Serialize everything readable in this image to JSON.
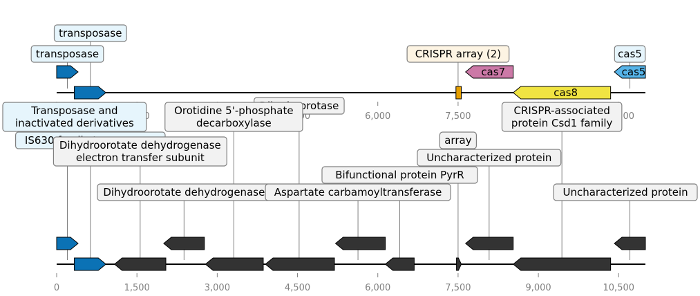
{
  "colors": {
    "transposase_blue": "#0b72b5",
    "crispr_array_orange": "#e69f00",
    "cas7_pink": "#cc79a7",
    "cas8_yellow": "#f0e442",
    "cas5_lightblue": "#56b4e9",
    "dark_gene": "#333333",
    "label_box_blue": "#e6f5fc",
    "label_box_cream": "#fdf4e3",
    "label_box_pink": "#fae9f2",
    "label_box_gray": "#f2f2f2",
    "tick_gray": "#808080"
  },
  "axis": {
    "min": 0,
    "max": 11000,
    "ticks": [
      {
        "value": 0,
        "label": "0"
      },
      {
        "value": 1500,
        "label": "1,500"
      },
      {
        "value": 3000,
        "label": "3,000"
      },
      {
        "value": 4500,
        "label": "4,500"
      },
      {
        "value": 6000,
        "label": "6,000"
      },
      {
        "value": 7500,
        "label": "7,500"
      },
      {
        "value": 9000,
        "label": "9,000"
      },
      {
        "value": 10500,
        "label": "10,500"
      }
    ]
  },
  "tracks": [
    {
      "id": "top",
      "genes": [
        {
          "start": 0,
          "end": 400,
          "strand": 1,
          "row": 1,
          "color": "transposase_blue"
        },
        {
          "start": 330,
          "end": 920,
          "strand": 1,
          "row": 0,
          "color": "transposase_blue"
        },
        {
          "start": 7460,
          "end": 7560,
          "strand": 0,
          "row": 0,
          "color": "crispr_array_orange"
        },
        {
          "start": 7640,
          "end": 8530,
          "strand": -1,
          "row": 1,
          "color": "cas7_pink",
          "inner_label": "cas7"
        },
        {
          "start": 8530,
          "end": 10350,
          "strand": -1,
          "row": 0,
          "color": "cas8_yellow",
          "inner_label": "cas8"
        },
        {
          "start": 10420,
          "end": 11000,
          "strand": -1,
          "row": 1,
          "color": "cas5_lightblue",
          "inner_label": "cas5"
        }
      ],
      "labels": [
        {
          "lines": [
            "transposase"
          ],
          "x": 630,
          "level": 2,
          "box": "label_box_blue"
        },
        {
          "lines": [
            "transposase"
          ],
          "x": 200,
          "level": 1,
          "box": "label_box_blue"
        },
        {
          "lines": [
            "CRISPR array (2)"
          ],
          "x": 7500,
          "level": 1,
          "box": "label_box_cream"
        },
        {
          "lines": [
            "cas5"
          ],
          "x": 10710,
          "level": 1,
          "box": "label_box_blue"
        }
      ]
    },
    {
      "id": "bottom",
      "genes": [
        {
          "start": 0,
          "end": 400,
          "strand": 1,
          "row": 1,
          "color": "transposase_blue"
        },
        {
          "start": 330,
          "end": 920,
          "strand": 1,
          "row": 0,
          "color": "transposase_blue"
        },
        {
          "start": 1080,
          "end": 2040,
          "strand": -1,
          "row": 0,
          "color": "dark_gene"
        },
        {
          "start": 2000,
          "end": 2760,
          "strand": -1,
          "row": 1,
          "color": "dark_gene"
        },
        {
          "start": 2780,
          "end": 3860,
          "strand": -1,
          "row": 0,
          "color": "dark_gene"
        },
        {
          "start": 3900,
          "end": 5190,
          "strand": -1,
          "row": 0,
          "color": "dark_gene"
        },
        {
          "start": 5210,
          "end": 6140,
          "strand": -1,
          "row": 1,
          "color": "dark_gene"
        },
        {
          "start": 6140,
          "end": 6680,
          "strand": -1,
          "row": 0,
          "color": "dark_gene"
        },
        {
          "start": 7470,
          "end": 7560,
          "strand": 1,
          "row": 0,
          "color": "dark_gene"
        },
        {
          "start": 7640,
          "end": 8530,
          "strand": -1,
          "row": 1,
          "color": "dark_gene"
        },
        {
          "start": 8530,
          "end": 10350,
          "strand": -1,
          "row": 0,
          "color": "dark_gene"
        },
        {
          "start": 10420,
          "end": 11000,
          "strand": -1,
          "row": 1,
          "color": "dark_gene"
        }
      ],
      "labels": [
        {
          "lines": [
            "Transposase and",
            "inactivated derivatives"
          ],
          "x": 200,
          "level": 5,
          "box": "label_box_blue"
        },
        {
          "lines": [
            "IS630 family transposase"
          ],
          "x": 630,
          "level": 4,
          "box": "label_box_blue"
        },
        {
          "lines": [
            "Dihydroorotase"
          ],
          "x": 4530,
          "level": 6,
          "box": "label_box_gray"
        },
        {
          "lines": [
            "Orotidine 5'-phosphate",
            "decarboxylase"
          ],
          "x": 3310,
          "level": 5,
          "box": "label_box_gray"
        },
        {
          "lines": [
            "Dihydroorotate dehydrogenase",
            "electron transfer subunit"
          ],
          "x": 1560,
          "level": 3,
          "box": "label_box_gray"
        },
        {
          "lines": [
            "Dihydroorotate dehydrogenase"
          ],
          "x": 2380,
          "level": 1,
          "box": "label_box_gray"
        },
        {
          "lines": [
            "array"
          ],
          "x": 7500,
          "level": 4,
          "box": "label_box_gray"
        },
        {
          "lines": [
            "Uncharacterized protein"
          ],
          "x": 8080,
          "level": 3,
          "box": "label_box_gray"
        },
        {
          "lines": [
            "Bifunctional protein PyrR"
          ],
          "x": 6410,
          "level": 2,
          "box": "label_box_gray"
        },
        {
          "lines": [
            "Aspartate carbamoyltransferase"
          ],
          "x": 5630,
          "level": 1,
          "box": "label_box_gray"
        },
        {
          "lines": [
            "CRISPR-associated",
            "protein Csd1 family"
          ],
          "x": 9440,
          "level": 5,
          "box": "label_box_gray"
        },
        {
          "lines": [
            "Uncharacterized protein"
          ],
          "x": 10710,
          "level": 1,
          "box": "label_box_gray"
        }
      ]
    }
  ]
}
